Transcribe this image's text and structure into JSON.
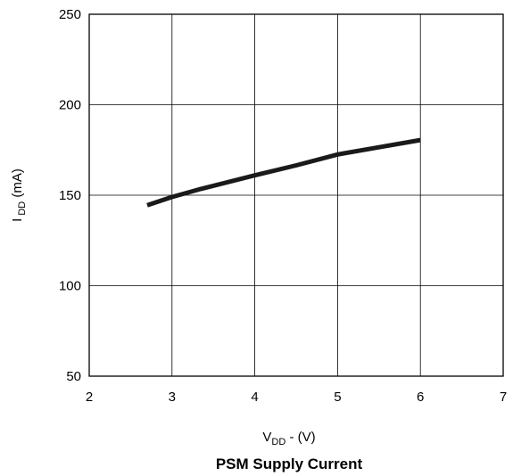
{
  "chart_data": {
    "type": "line",
    "title": "PSM Supply Current",
    "xlabel": {
      "main": "V",
      "sub": "DD",
      "tail": " - (V)"
    },
    "ylabel": {
      "main": "I",
      "sub": " DD",
      "tail": "  (mA)"
    },
    "xlim": [
      2,
      7
    ],
    "ylim": [
      50,
      250
    ],
    "xticks": [
      2,
      3,
      4,
      5,
      6,
      7
    ],
    "yticks": [
      50,
      100,
      150,
      200,
      250
    ],
    "grid": true,
    "series": [
      {
        "x": [
          2.7,
          3.0,
          3.35,
          4.0,
          4.5,
          5.0,
          5.5,
          6.0
        ],
        "y": [
          144.5,
          149,
          153.5,
          161,
          166.5,
          172.5,
          176.5,
          180.5
        ],
        "color": "#1a1a1a"
      }
    ]
  }
}
